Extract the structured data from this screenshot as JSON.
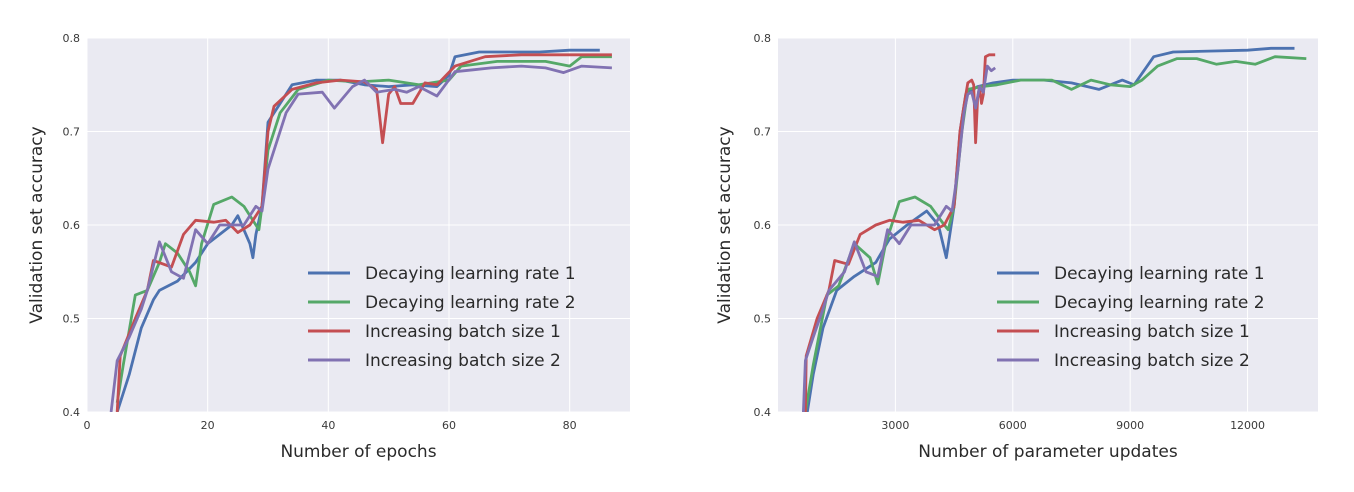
{
  "chart_data": [
    {
      "type": "line",
      "xlabel": "Number of epochs",
      "ylabel": "Validation set accuracy",
      "xlim": [
        0,
        90
      ],
      "ylim": [
        0.4,
        0.8
      ],
      "xticks": [
        0,
        20,
        40,
        60,
        80
      ],
      "yticks": [
        0.4,
        0.5,
        0.6,
        0.7,
        0.8
      ],
      "xtick_labels": [
        "0",
        "20",
        "40",
        "60",
        "80"
      ],
      "ytick_labels": [
        "0.4",
        "0.5",
        "0.6",
        "0.7",
        "0.8"
      ],
      "grid": true,
      "legend_position": "lower-right",
      "series": [
        {
          "name": "Decaying learning rate 1",
          "color": "#4c72b0",
          "points": [
            [
              5,
              0.4
            ],
            [
              7,
              0.44
            ],
            [
              9,
              0.49
            ],
            [
              11,
              0.52
            ],
            [
              12,
              0.53
            ],
            [
              15,
              0.54
            ],
            [
              18,
              0.56
            ],
            [
              20,
              0.58
            ],
            [
              22,
              0.59
            ],
            [
              24,
              0.6
            ],
            [
              25,
              0.61
            ],
            [
              27,
              0.58
            ],
            [
              27.5,
              0.565
            ],
            [
              28,
              0.59
            ],
            [
              29,
              0.62
            ],
            [
              30,
              0.71
            ],
            [
              32,
              0.73
            ],
            [
              34,
              0.75
            ],
            [
              38,
              0.755
            ],
            [
              42,
              0.755
            ],
            [
              46,
              0.75
            ],
            [
              50,
              0.748
            ],
            [
              54,
              0.75
            ],
            [
              58,
              0.748
            ],
            [
              60,
              0.76
            ],
            [
              61,
              0.78
            ],
            [
              65,
              0.785
            ],
            [
              70,
              0.785
            ],
            [
              75,
              0.785
            ],
            [
              80,
              0.787
            ],
            [
              85,
              0.787
            ]
          ]
        },
        {
          "name": "Decaying learning rate 2",
          "color": "#55a868",
          "points": [
            [
              5,
              0.41
            ],
            [
              6,
              0.45
            ],
            [
              8,
              0.525
            ],
            [
              10,
              0.53
            ],
            [
              12,
              0.56
            ],
            [
              13,
              0.58
            ],
            [
              15,
              0.57
            ],
            [
              17,
              0.55
            ],
            [
              18,
              0.535
            ],
            [
              19,
              0.58
            ],
            [
              21,
              0.622
            ],
            [
              24,
              0.63
            ],
            [
              26,
              0.62
            ],
            [
              28,
              0.6
            ],
            [
              28.5,
              0.595
            ],
            [
              29,
              0.62
            ],
            [
              30,
              0.68
            ],
            [
              32,
              0.72
            ],
            [
              35,
              0.745
            ],
            [
              40,
              0.755
            ],
            [
              45,
              0.753
            ],
            [
              50,
              0.755
            ],
            [
              55,
              0.75
            ],
            [
              60,
              0.755
            ],
            [
              62,
              0.77
            ],
            [
              68,
              0.775
            ],
            [
              72,
              0.775
            ],
            [
              76,
              0.775
            ],
            [
              80,
              0.77
            ],
            [
              82,
              0.78
            ],
            [
              87,
              0.78
            ]
          ]
        },
        {
          "name": "Increasing batch size 1",
          "color": "#c44e52",
          "points": [
            [
              5,
              0.4
            ],
            [
              5.5,
              0.46
            ],
            [
              8,
              0.5
            ],
            [
              10,
              0.53
            ],
            [
              11,
              0.562
            ],
            [
              14,
              0.555
            ],
            [
              16,
              0.59
            ],
            [
              18,
              0.605
            ],
            [
              21,
              0.603
            ],
            [
              23,
              0.605
            ],
            [
              25,
              0.592
            ],
            [
              27,
              0.6
            ],
            [
              29,
              0.62
            ],
            [
              30,
              0.7
            ],
            [
              31,
              0.727
            ],
            [
              34,
              0.745
            ],
            [
              38,
              0.752
            ],
            [
              42,
              0.755
            ],
            [
              46,
              0.753
            ],
            [
              48,
              0.745
            ],
            [
              49,
              0.688
            ],
            [
              50,
              0.74
            ],
            [
              51,
              0.748
            ],
            [
              52,
              0.73
            ],
            [
              54,
              0.73
            ],
            [
              56,
              0.752
            ],
            [
              58,
              0.75
            ],
            [
              61,
              0.77
            ],
            [
              66,
              0.78
            ],
            [
              72,
              0.782
            ],
            [
              80,
              0.782
            ],
            [
              87,
              0.782
            ]
          ]
        },
        {
          "name": "Increasing batch size 2",
          "color": "#8172b2",
          "points": [
            [
              4,
              0.4
            ],
            [
              5,
              0.455
            ],
            [
              7,
              0.48
            ],
            [
              9,
              0.51
            ],
            [
              10,
              0.53
            ],
            [
              12,
              0.582
            ],
            [
              14,
              0.55
            ],
            [
              16,
              0.543
            ],
            [
              18,
              0.595
            ],
            [
              20,
              0.58
            ],
            [
              22,
              0.6
            ],
            [
              24,
              0.6
            ],
            [
              26,
              0.6
            ],
            [
              28,
              0.62
            ],
            [
              29,
              0.615
            ],
            [
              30,
              0.66
            ],
            [
              33,
              0.72
            ],
            [
              35,
              0.74
            ],
            [
              39,
              0.742
            ],
            [
              41,
              0.725
            ],
            [
              44,
              0.748
            ],
            [
              46,
              0.755
            ],
            [
              48,
              0.742
            ],
            [
              51,
              0.745
            ],
            [
              53,
              0.742
            ],
            [
              55,
              0.748
            ],
            [
              58,
              0.738
            ],
            [
              61,
              0.764
            ],
            [
              64,
              0.766
            ],
            [
              67,
              0.768
            ],
            [
              72,
              0.77
            ],
            [
              76,
              0.768
            ],
            [
              79,
              0.763
            ],
            [
              82,
              0.77
            ],
            [
              87,
              0.768
            ]
          ]
        }
      ]
    },
    {
      "type": "line",
      "xlabel": "Number of parameter updates",
      "ylabel": "Validation set accuracy",
      "xlim": [
        0,
        13800
      ],
      "ylim": [
        0.4,
        0.8
      ],
      "xticks": [
        3000,
        6000,
        9000,
        12000
      ],
      "yticks": [
        0.4,
        0.5,
        0.6,
        0.7,
        0.8
      ],
      "xtick_labels": [
        "3000",
        "6000",
        "9000",
        "12000"
      ],
      "ytick_labels": [
        "0.4",
        "0.5",
        "0.6",
        "0.7",
        "0.8"
      ],
      "grid": true,
      "legend_position": "lower-right",
      "series": [
        {
          "name": "Decaying learning rate 1",
          "color": "#4c72b0",
          "points": [
            [
              750,
              0.4
            ],
            [
              900,
              0.44
            ],
            [
              1150,
              0.49
            ],
            [
              1500,
              0.53
            ],
            [
              1950,
              0.545
            ],
            [
              2500,
              0.56
            ],
            [
              2850,
              0.585
            ],
            [
              3300,
              0.6
            ],
            [
              3800,
              0.615
            ],
            [
              4100,
              0.6
            ],
            [
              4300,
              0.565
            ],
            [
              4500,
              0.62
            ],
            [
              4650,
              0.7
            ],
            [
              4800,
              0.74
            ],
            [
              5100,
              0.748
            ],
            [
              5500,
              0.752
            ],
            [
              6000,
              0.755
            ],
            [
              6800,
              0.755
            ],
            [
              7500,
              0.752
            ],
            [
              8200,
              0.745
            ],
            [
              8800,
              0.755
            ],
            [
              9100,
              0.75
            ],
            [
              9600,
              0.78
            ],
            [
              10100,
              0.785
            ],
            [
              11000,
              0.786
            ],
            [
              12000,
              0.787
            ],
            [
              12600,
              0.789
            ],
            [
              13200,
              0.789
            ]
          ]
        },
        {
          "name": "Decaying learning rate 2",
          "color": "#55a868",
          "points": [
            [
              700,
              0.4
            ],
            [
              900,
              0.45
            ],
            [
              1250,
              0.525
            ],
            [
              1550,
              0.535
            ],
            [
              1950,
              0.58
            ],
            [
              2350,
              0.565
            ],
            [
              2550,
              0.537
            ],
            [
              2750,
              0.58
            ],
            [
              3100,
              0.625
            ],
            [
              3500,
              0.63
            ],
            [
              3900,
              0.62
            ],
            [
              4250,
              0.6
            ],
            [
              4350,
              0.595
            ],
            [
              4500,
              0.62
            ],
            [
              4700,
              0.7
            ],
            [
              4850,
              0.745
            ],
            [
              5200,
              0.748
            ],
            [
              5600,
              0.75
            ],
            [
              6200,
              0.755
            ],
            [
              7000,
              0.755
            ],
            [
              7500,
              0.745
            ],
            [
              8000,
              0.755
            ],
            [
              8500,
              0.75
            ],
            [
              9000,
              0.748
            ],
            [
              9300,
              0.755
            ],
            [
              9700,
              0.77
            ],
            [
              10200,
              0.778
            ],
            [
              10700,
              0.778
            ],
            [
              11200,
              0.772
            ],
            [
              11700,
              0.775
            ],
            [
              12200,
              0.772
            ],
            [
              12700,
              0.78
            ],
            [
              13500,
              0.778
            ]
          ]
        },
        {
          "name": "Increasing batch size 1",
          "color": "#c44e52",
          "points": [
            [
              700,
              0.4
            ],
            [
              720,
              0.46
            ],
            [
              1000,
              0.5
            ],
            [
              1300,
              0.53
            ],
            [
              1450,
              0.562
            ],
            [
              1800,
              0.558
            ],
            [
              2100,
              0.59
            ],
            [
              2500,
              0.6
            ],
            [
              2850,
              0.605
            ],
            [
              3200,
              0.603
            ],
            [
              3600,
              0.605
            ],
            [
              4000,
              0.595
            ],
            [
              4250,
              0.6
            ],
            [
              4500,
              0.62
            ],
            [
              4650,
              0.7
            ],
            [
              4750,
              0.727
            ],
            [
              4850,
              0.752
            ],
            [
              4950,
              0.755
            ],
            [
              5000,
              0.75
            ],
            [
              5050,
              0.688
            ],
            [
              5100,
              0.735
            ],
            [
              5150,
              0.748
            ],
            [
              5200,
              0.73
            ],
            [
              5250,
              0.74
            ],
            [
              5300,
              0.78
            ],
            [
              5400,
              0.782
            ],
            [
              5550,
              0.782
            ]
          ]
        },
        {
          "name": "Increasing batch size 2",
          "color": "#8172b2",
          "points": [
            [
              650,
              0.4
            ],
            [
              700,
              0.455
            ],
            [
              900,
              0.48
            ],
            [
              1150,
              0.51
            ],
            [
              1300,
              0.53
            ],
            [
              1700,
              0.55
            ],
            [
              1950,
              0.582
            ],
            [
              2250,
              0.55
            ],
            [
              2550,
              0.545
            ],
            [
              2800,
              0.595
            ],
            [
              3100,
              0.58
            ],
            [
              3400,
              0.6
            ],
            [
              3700,
              0.6
            ],
            [
              4000,
              0.6
            ],
            [
              4300,
              0.62
            ],
            [
              4450,
              0.615
            ],
            [
              4600,
              0.66
            ],
            [
              4750,
              0.72
            ],
            [
              4850,
              0.74
            ],
            [
              4950,
              0.742
            ],
            [
              5050,
              0.725
            ],
            [
              5150,
              0.748
            ],
            [
              5250,
              0.742
            ],
            [
              5350,
              0.77
            ],
            [
              5450,
              0.765
            ],
            [
              5550,
              0.768
            ]
          ]
        }
      ]
    }
  ]
}
